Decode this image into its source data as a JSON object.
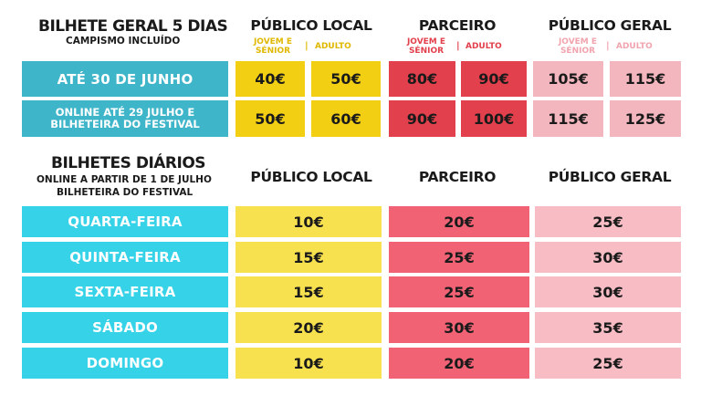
{
  "general": {
    "title": "BILHETE GERAL 5 DIAS",
    "subtitle": "CAMPISMO INCLUÍDO",
    "columns": [
      {
        "name": "PÚBLICO LOCAL",
        "sub_a": "JOVEM E SÉNIOR",
        "sub_b": "ADULTO"
      },
      {
        "name": "PARCEIRO",
        "sub_a": "JOVEM E SÉNIOR",
        "sub_b": "ADULTO"
      },
      {
        "name": "PÚBLICO GERAL",
        "sub_a": "JOVEM E SÉNIOR",
        "sub_b": "ADULTO"
      }
    ],
    "separator": "|",
    "rows": [
      {
        "label": "ATÉ 30 DE JUNHO",
        "prices": [
          "40€",
          "50€",
          "80€",
          "90€",
          "105€",
          "115€"
        ]
      },
      {
        "label": "ONLINE ATÉ 29 JULHO E BILHETEIRA DO FESTIVAL",
        "prices": [
          "50€",
          "60€",
          "90€",
          "100€",
          "115€",
          "125€"
        ]
      }
    ]
  },
  "daily": {
    "title": "BILHETES DIÁRIOS",
    "subtitle_1": "ONLINE A PARTIR DE 1 DE JULHO",
    "subtitle_2": "BILHETEIRA DO FESTIVAL",
    "columns": [
      "PÚBLICO LOCAL",
      "PARCEIRO",
      "PÚBLICO GERAL"
    ],
    "rows": [
      {
        "label": "QUARTA-FEIRA",
        "prices": [
          "10€",
          "20€",
          "25€"
        ]
      },
      {
        "label": "QUINTA-FEIRA",
        "prices": [
          "15€",
          "25€",
          "30€"
        ]
      },
      {
        "label": "SEXTA-FEIRA",
        "prices": [
          "15€",
          "25€",
          "30€"
        ]
      },
      {
        "label": "SÁBADO",
        "prices": [
          "20€",
          "30€",
          "35€"
        ]
      },
      {
        "label": "DOMINGO",
        "prices": [
          "10€",
          "20€",
          "25€"
        ]
      }
    ]
  },
  "colors": {
    "local": "#f3cf14",
    "partner": "#e2404c",
    "general": "#f4b6be",
    "general_row_label": "#3fb5c9",
    "daily_row_label": "#35d2e8"
  }
}
